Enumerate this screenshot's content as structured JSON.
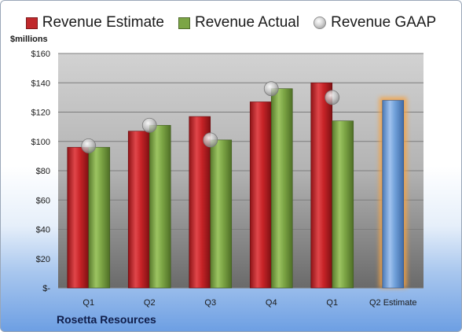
{
  "legend": [
    {
      "label": "Revenue Estimate",
      "color": "#c0282b",
      "kind": "square"
    },
    {
      "label": "Revenue Actual",
      "color": "#7ca545",
      "kind": "square"
    },
    {
      "label": "Revenue GAAP",
      "color": "#b8b8b8",
      "kind": "circle"
    }
  ],
  "unit_label": "$millions",
  "company": "Rosetta Resources",
  "chart_data": {
    "type": "bar",
    "categories": [
      "Q1",
      "Q2",
      "Q3",
      "Q4",
      "Q1",
      "Q2 Estimate"
    ],
    "y_ticks": [
      "$-",
      "$20",
      "$40",
      "$60",
      "$80",
      "$100",
      "$120",
      "$140",
      "$160"
    ],
    "ylim": [
      0,
      160
    ],
    "grid": true,
    "legend_position": "top",
    "series": [
      {
        "name": "Revenue Estimate",
        "type": "bar",
        "color": "#c0282b",
        "values": [
          96,
          107,
          117,
          127,
          140,
          null
        ]
      },
      {
        "name": "Revenue Actual",
        "type": "bar",
        "color": "#7ca545",
        "values": [
          96,
          111,
          101,
          136,
          114,
          null
        ]
      },
      {
        "name": "Revenue GAAP",
        "type": "marker",
        "color": "#b8b8b8",
        "values": [
          97,
          111,
          101,
          136,
          130,
          null
        ]
      },
      {
        "name": "Q2 Estimate",
        "type": "bar",
        "color": "#6f9fd8",
        "highlight": true,
        "values": [
          null,
          null,
          null,
          null,
          null,
          128
        ]
      }
    ]
  }
}
